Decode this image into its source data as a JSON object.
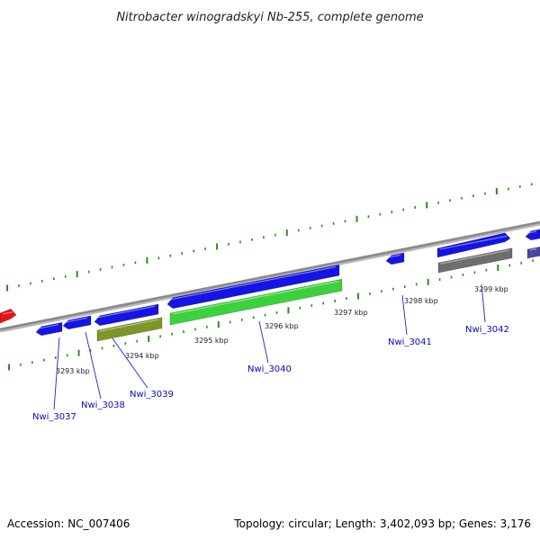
{
  "title": "Nitrobacter winogradskyi Nb-255, complete genome",
  "footer": {
    "accession": "Accession: NC_007406",
    "summary": "Topology: circular; Length: 3,402,093 bp; Genes: 3,176"
  },
  "colors": {
    "backbone": "#8a8a8a",
    "dots": "#2e8b1e",
    "gene_blue": "#1414e6",
    "gene_green": "#3cd23c",
    "gene_olive": "#7d9628",
    "gene_gray": "#6e6e6e",
    "gene_red": "#e61414",
    "gene_purple": "#4b46a0",
    "label": "#0a0ab4"
  },
  "ticks": [
    {
      "label": "3293 kbp"
    },
    {
      "label": "3294 kbp"
    },
    {
      "label": "3295 kbp"
    },
    {
      "label": "3296 kbp"
    },
    {
      "label": "3297 kbp"
    },
    {
      "label": "3298 kbp"
    },
    {
      "label": "3299 kbp"
    }
  ],
  "gene_labels": [
    {
      "label": "Nwi_3037"
    },
    {
      "label": "Nwi_3038"
    },
    {
      "label": "Nwi_3039"
    },
    {
      "label": "Nwi_3040"
    },
    {
      "label": "Nwi_3041"
    },
    {
      "label": "Nwi_3042"
    }
  ]
}
